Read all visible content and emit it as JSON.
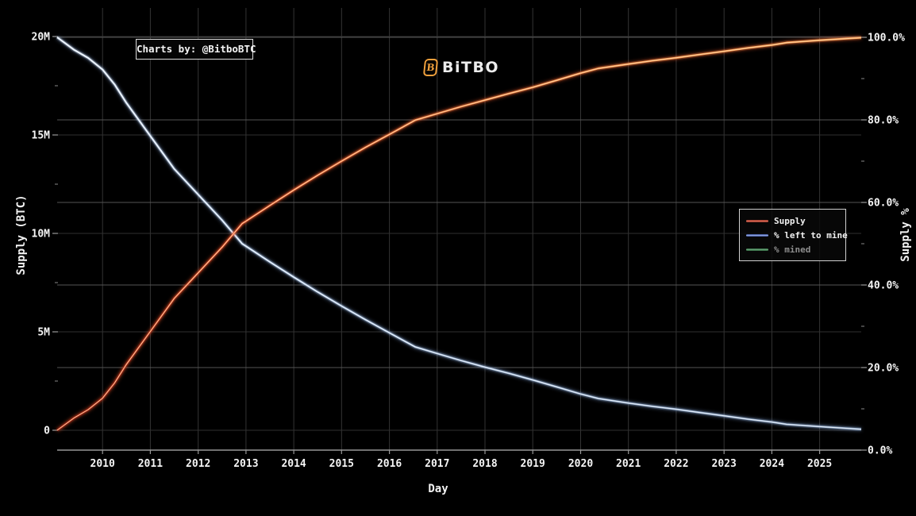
{
  "branding": {
    "charts_by_label": "Charts by: @BitboBTC",
    "logo": {
      "icon_letter": "B",
      "icon_color": "#f0a03c",
      "text": "BiTBO"
    }
  },
  "chart_data": {
    "type": "line",
    "xlabel": "Day",
    "x_axis": {
      "range": [
        2009.05,
        2025.87
      ],
      "ticks": [
        2010,
        2011,
        2012,
        2013,
        2014,
        2015,
        2016,
        2017,
        2018,
        2019,
        2020,
        2021,
        2022,
        2023,
        2024,
        2025
      ]
    },
    "y_axis_left": {
      "label": "Supply (BTC)",
      "unit": "BTC (millions)",
      "range": [
        0,
        20
      ],
      "ticks": [
        {
          "value": 0,
          "label": "0"
        },
        {
          "value": 5,
          "label": "5M"
        },
        {
          "value": 10,
          "label": "10M"
        },
        {
          "value": 15,
          "label": "15M"
        },
        {
          "value": 20,
          "label": "20M"
        }
      ],
      "minor_ticks": [
        2.5,
        7.5,
        12.5,
        17.5
      ]
    },
    "y_axis_right": {
      "label": "Supply %",
      "range": [
        0,
        100
      ],
      "ticks": [
        {
          "value": 0,
          "label": "0.0%"
        },
        {
          "value": 20,
          "label": "20.0%"
        },
        {
          "value": 40,
          "label": "40.0%"
        },
        {
          "value": 60,
          "label": "60.0%"
        },
        {
          "value": 80,
          "label": "80.0%"
        },
        {
          "value": 100,
          "label": "100.0%"
        }
      ],
      "minor_ticks": [
        10,
        30,
        50,
        70,
        90
      ]
    },
    "grid": true,
    "legend_position": "right-middle",
    "series": [
      {
        "name": "Supply",
        "axis": "left",
        "visible": true,
        "gradient_bottom_to_top": [
          "#b3261a",
          "#e8502e",
          "#ff9e55"
        ],
        "core_color": "#ffddaa",
        "legend_dark": "#8f231b",
        "legend_core": "#e07a62",
        "points": [
          [
            2009.05,
            0
          ],
          [
            2009.4,
            0.62
          ],
          [
            2009.7,
            1.05
          ],
          [
            2010,
            1.63
          ],
          [
            2010.25,
            2.4
          ],
          [
            2010.5,
            3.35
          ],
          [
            2011,
            5.02
          ],
          [
            2011.5,
            6.7
          ],
          [
            2012,
            8.0
          ],
          [
            2012.5,
            9.3
          ],
          [
            2012.92,
            10.5
          ],
          [
            2013,
            10.62
          ],
          [
            2013.5,
            11.42
          ],
          [
            2014,
            12.2
          ],
          [
            2014.5,
            12.95
          ],
          [
            2015,
            13.67
          ],
          [
            2015.5,
            14.37
          ],
          [
            2016,
            15.03
          ],
          [
            2016.54,
            15.75
          ],
          [
            2017,
            16.08
          ],
          [
            2017.5,
            16.44
          ],
          [
            2018,
            16.77
          ],
          [
            2018.5,
            17.1
          ],
          [
            2019,
            17.42
          ],
          [
            2019.5,
            17.78
          ],
          [
            2020,
            18.14
          ],
          [
            2020.37,
            18.38
          ],
          [
            2021,
            18.6
          ],
          [
            2021.5,
            18.77
          ],
          [
            2022,
            18.92
          ],
          [
            2022.5,
            19.09
          ],
          [
            2023,
            19.25
          ],
          [
            2023.5,
            19.42
          ],
          [
            2024,
            19.57
          ],
          [
            2024.31,
            19.69
          ],
          [
            2025,
            19.81
          ],
          [
            2025.87,
            19.94
          ]
        ]
      },
      {
        "name": "% left to mine",
        "axis": "right",
        "visible": true,
        "gradient_bottom_to_top": [
          "#8fa8c9",
          "#bdd2ec",
          "#e2ecf9"
        ],
        "core_color": "#f4f9ff",
        "legend_dark": "#2b3f8f",
        "legend_core": "#9db4e8",
        "points": [
          [
            2009.05,
            100
          ],
          [
            2009.4,
            97.0
          ],
          [
            2009.7,
            95.0
          ],
          [
            2010,
            92.2
          ],
          [
            2010.25,
            88.6
          ],
          [
            2010.5,
            84.1
          ],
          [
            2011,
            76.1
          ],
          [
            2011.5,
            68.1
          ],
          [
            2012,
            61.9
          ],
          [
            2012.5,
            55.7
          ],
          [
            2012.92,
            50.0
          ],
          [
            2013,
            49.4
          ],
          [
            2013.5,
            45.6
          ],
          [
            2014,
            41.9
          ],
          [
            2014.5,
            38.3
          ],
          [
            2015,
            34.9
          ],
          [
            2015.5,
            31.6
          ],
          [
            2016,
            28.4
          ],
          [
            2016.54,
            25.0
          ],
          [
            2017,
            23.4
          ],
          [
            2017.5,
            21.7
          ],
          [
            2018,
            20.1
          ],
          [
            2018.5,
            18.6
          ],
          [
            2019,
            17.0
          ],
          [
            2019.5,
            15.3
          ],
          [
            2020,
            13.6
          ],
          [
            2020.37,
            12.5
          ],
          [
            2021,
            11.4
          ],
          [
            2021.5,
            10.6
          ],
          [
            2022,
            9.9
          ],
          [
            2022.5,
            9.1
          ],
          [
            2023,
            8.3
          ],
          [
            2023.5,
            7.5
          ],
          [
            2024,
            6.8
          ],
          [
            2024.31,
            6.25
          ],
          [
            2025,
            5.7
          ],
          [
            2025.87,
            5.05
          ]
        ]
      },
      {
        "name": "% mined",
        "axis": "right",
        "visible": false,
        "gradient_bottom_to_top": [],
        "core_color": "#9ccdaa",
        "legend_dark": "#245c34",
        "legend_core": "#6fa87e",
        "points": []
      }
    ]
  }
}
